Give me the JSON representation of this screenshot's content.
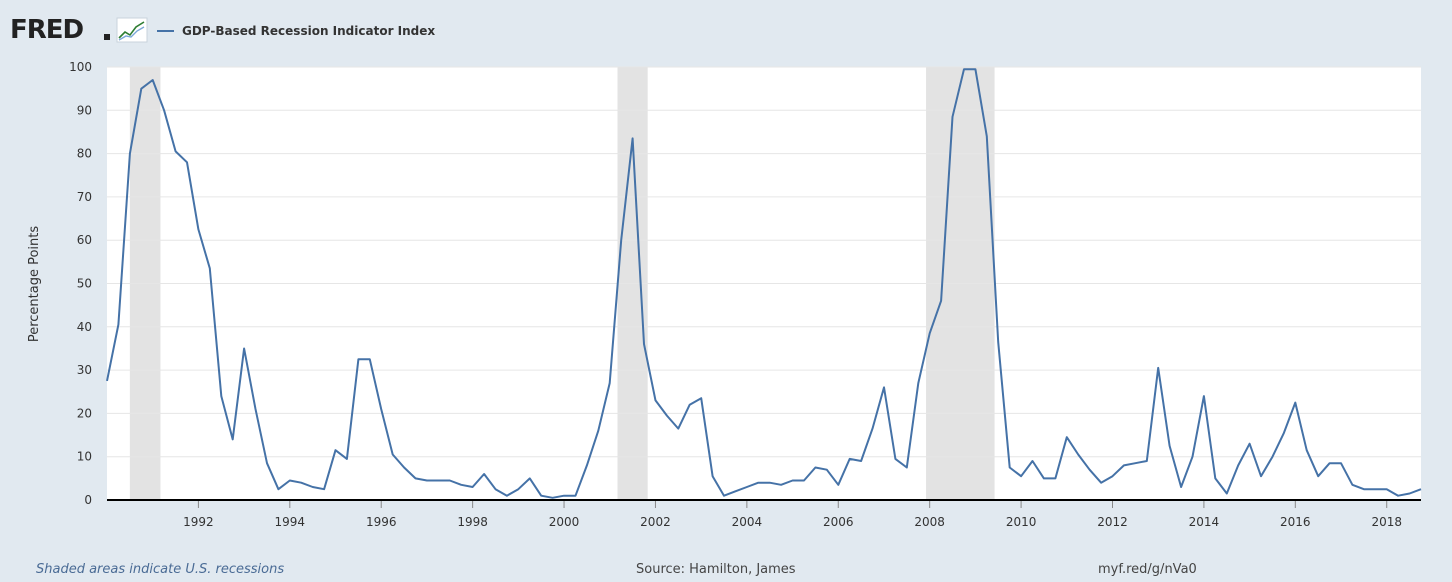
{
  "header": {
    "logo_text": "FRED",
    "legend_label": "GDP-Based Recession Indicator Index",
    "series_color": "#4572a7"
  },
  "footer": {
    "note": "Shaded areas indicate U.S. recessions",
    "source": "Source: Hamilton, James",
    "link": "myf.red/g/nVa0"
  },
  "chart_data": {
    "type": "line",
    "title": "",
    "xlabel": "",
    "ylabel": "Percentage Points",
    "xlim": [
      1990.0,
      2018.75
    ],
    "ylim": [
      0,
      100
    ],
    "yticks": [
      0,
      10,
      20,
      30,
      40,
      50,
      60,
      70,
      80,
      90,
      100
    ],
    "xticks": [
      "1992",
      "1994",
      "1996",
      "1998",
      "2000",
      "2002",
      "2004",
      "2006",
      "2008",
      "2010",
      "2012",
      "2014",
      "2016",
      "2018"
    ],
    "grid": true,
    "legend": "top-left",
    "recessions": [
      {
        "start": 1990.5,
        "end": 1991.17
      },
      {
        "start": 2001.17,
        "end": 2001.83
      },
      {
        "start": 2007.92,
        "end": 2009.42
      }
    ],
    "series": [
      {
        "name": "GDP-Based Recession Indicator Index",
        "color": "#4572a7",
        "x": [
          1990.0,
          1990.25,
          1990.5,
          1990.75,
          1991.0,
          1991.25,
          1991.5,
          1991.75,
          1992.0,
          1992.25,
          1992.5,
          1992.75,
          1993.0,
          1993.25,
          1993.5,
          1993.75,
          1994.0,
          1994.25,
          1994.5,
          1994.75,
          1995.0,
          1995.25,
          1995.5,
          1995.75,
          1996.0,
          1996.25,
          1996.5,
          1996.75,
          1997.0,
          1997.25,
          1997.5,
          1997.75,
          1998.0,
          1998.25,
          1998.5,
          1998.75,
          1999.0,
          1999.25,
          1999.5,
          1999.75,
          2000.0,
          2000.25,
          2000.5,
          2000.75,
          2001.0,
          2001.25,
          2001.5,
          2001.75,
          2002.0,
          2002.25,
          2002.5,
          2002.75,
          2003.0,
          2003.25,
          2003.5,
          2003.75,
          2004.0,
          2004.25,
          2004.5,
          2004.75,
          2005.0,
          2005.25,
          2005.5,
          2005.75,
          2006.0,
          2006.25,
          2006.5,
          2006.75,
          2007.0,
          2007.25,
          2007.5,
          2007.75,
          2008.0,
          2008.25,
          2008.5,
          2008.75,
          2009.0,
          2009.25,
          2009.5,
          2009.75,
          2010.0,
          2010.25,
          2010.5,
          2010.75,
          2011.0,
          2011.25,
          2011.5,
          2011.75,
          2012.0,
          2012.25,
          2012.5,
          2012.75,
          2013.0,
          2013.25,
          2013.5,
          2013.75,
          2014.0,
          2014.25,
          2014.5,
          2014.75,
          2015.0,
          2015.25,
          2015.5,
          2015.75,
          2016.0,
          2016.25,
          2016.5,
          2016.75,
          2017.0,
          2017.25,
          2017.5,
          2017.75,
          2018.0,
          2018.25,
          2018.5,
          2018.75
        ],
        "values": [
          27.5,
          40.5,
          80.0,
          95.0,
          97.0,
          90.0,
          80.5,
          78.0,
          62.5,
          53.5,
          24.0,
          14.0,
          35.0,
          21.0,
          8.5,
          2.5,
          4.5,
          4.0,
          3.0,
          2.5,
          11.5,
          9.5,
          32.5,
          32.5,
          21.0,
          10.5,
          7.5,
          5.0,
          4.5,
          4.5,
          4.5,
          3.5,
          3.0,
          6.0,
          2.5,
          1.0,
          2.5,
          5.0,
          1.0,
          0.5,
          1.0,
          1.0,
          8.0,
          16.0,
          27.0,
          60.0,
          83.5,
          36.0,
          23.0,
          19.5,
          16.5,
          22.0,
          23.5,
          5.5,
          1.0,
          2.0,
          3.0,
          4.0,
          4.0,
          3.5,
          4.5,
          4.5,
          7.5,
          7.0,
          3.5,
          9.5,
          9.0,
          16.5,
          26.0,
          9.5,
          7.5,
          27.0,
          38.5,
          46.0,
          88.5,
          99.5,
          99.5,
          84.0,
          36.5,
          7.5,
          5.5,
          9.0,
          5.0,
          5.0,
          14.5,
          10.5,
          7.0,
          4.0,
          5.5,
          8.0,
          8.5,
          9.0,
          30.5,
          12.5,
          3.0,
          10.0,
          24.0,
          5.0,
          1.5,
          8.0,
          13.0,
          5.5,
          10.0,
          15.5,
          22.5,
          11.5,
          5.5,
          8.5,
          8.5,
          3.5,
          2.5,
          2.5,
          2.5,
          1.0,
          1.5,
          2.5
        ]
      }
    ]
  }
}
